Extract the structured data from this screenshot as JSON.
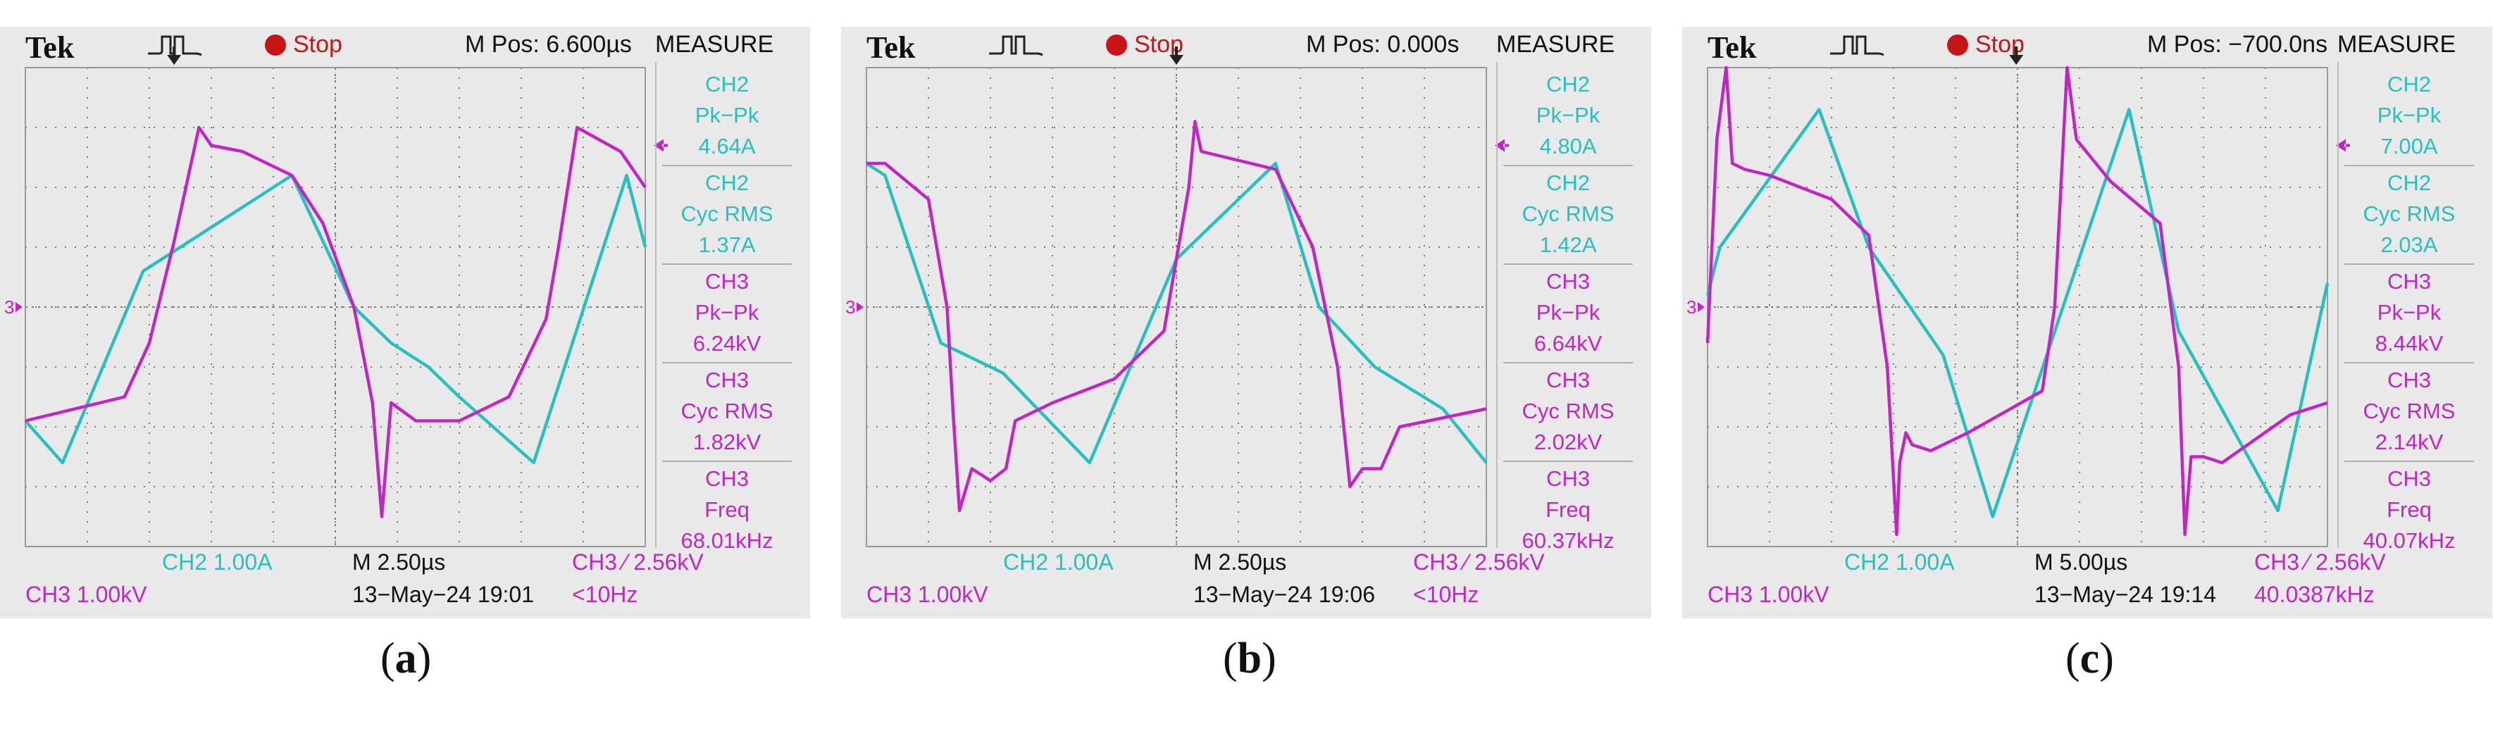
{
  "colors": {
    "ch2": "#27c0c0",
    "ch3": "#c126c2",
    "stop": "#c81414",
    "grid": "#7a7a7a"
  },
  "panels": [
    {
      "caption": "a",
      "header": {
        "brand": "Tek",
        "trigger_icon": "trigger-pulse-icon",
        "state": "Stop",
        "mpos": "M Pos: 6.600µs",
        "measure_title": "MEASURE"
      },
      "measurements": [
        {
          "ch": "CH2",
          "name": "Pk−Pk",
          "value": "4.64A"
        },
        {
          "ch": "CH2",
          "name": "Cyc RMS",
          "value": "1.37A"
        },
        {
          "ch": "CH3",
          "name": "Pk−Pk",
          "value": "6.24kV"
        },
        {
          "ch": "CH3",
          "name": "Cyc RMS",
          "value": "1.82kV"
        },
        {
          "ch": "CH3",
          "name": "Freq",
          "value": "68.01kHz"
        }
      ],
      "status": {
        "ch2_scale": "CH2  1.00A",
        "timebase": "M 2.50µs",
        "trigger": "CH3 ⁄ 2.56kV",
        "ch3_scale": "CH3  1.00kV",
        "datetime": "13−May−24 19:01",
        "trigger_freq": "<10Hz"
      }
    },
    {
      "caption": "b",
      "header": {
        "brand": "Tek",
        "trigger_icon": "trigger-pulse-icon",
        "state": "Stop",
        "mpos": "M Pos: 0.000s",
        "measure_title": "MEASURE"
      },
      "measurements": [
        {
          "ch": "CH2",
          "name": "Pk−Pk",
          "value": "4.80A"
        },
        {
          "ch": "CH2",
          "name": "Cyc RMS",
          "value": "1.42A"
        },
        {
          "ch": "CH3",
          "name": "Pk−Pk",
          "value": "6.64kV"
        },
        {
          "ch": "CH3",
          "name": "Cyc RMS",
          "value": "2.02kV"
        },
        {
          "ch": "CH3",
          "name": "Freq",
          "value": "60.37kHz"
        }
      ],
      "status": {
        "ch2_scale": "CH2  1.00A",
        "timebase": "M 2.50µs",
        "trigger": "CH3 ⁄ 2.56kV",
        "ch3_scale": "CH3  1.00kV",
        "datetime": "13−May−24 19:06",
        "trigger_freq": "<10Hz"
      }
    },
    {
      "caption": "c",
      "header": {
        "brand": "Tek",
        "trigger_icon": "trigger-pulse-icon",
        "state": "Stop",
        "mpos": "M Pos: −700.0ns",
        "measure_title": "MEASURE"
      },
      "measurements": [
        {
          "ch": "CH2",
          "name": "Pk−Pk",
          "value": "7.00A"
        },
        {
          "ch": "CH2",
          "name": "Cyc RMS",
          "value": "2.03A"
        },
        {
          "ch": "CH3",
          "name": "Pk−Pk",
          "value": "8.44kV"
        },
        {
          "ch": "CH3",
          "name": "Cyc RMS",
          "value": "2.14kV"
        },
        {
          "ch": "CH3",
          "name": "Freq",
          "value": "40.07kHz"
        }
      ],
      "status": {
        "ch2_scale": "CH2  1.00A",
        "timebase": "M 5.00µs",
        "trigger": "CH3 ⁄ 2.56kV",
        "ch3_scale": "CH3  1.00kV",
        "datetime": "13−May−24 19:14",
        "trigger_freq": "40.0387kHz"
      }
    }
  ],
  "chart_data": [
    {
      "type": "line",
      "title": "(a)",
      "x_unit": "div",
      "y_unit": "div",
      "xlim": [
        0,
        10
      ],
      "ylim": [
        -4,
        4
      ],
      "grid": true,
      "series": [
        {
          "name": "CH2",
          "unit": "A",
          "x": [
            0,
            0.6,
            1.9,
            4.3,
            5.3,
            5.9,
            6.5,
            7.0,
            8.2,
            9.7,
            10
          ],
          "y": [
            -1.9,
            -2.6,
            0.6,
            2.2,
            0.0,
            -0.6,
            -1.0,
            -1.5,
            -2.6,
            2.2,
            1.0
          ]
        },
        {
          "name": "CH3",
          "unit": "kV",
          "x": [
            0,
            1.6,
            2.0,
            2.4,
            2.8,
            3.0,
            3.5,
            4.3,
            4.8,
            5.3,
            5.6,
            5.75,
            5.9,
            6.3,
            7.0,
            7.8,
            8.4,
            8.6,
            8.9,
            9.6,
            10
          ],
          "y": [
            -1.9,
            -1.5,
            -0.6,
            1.1,
            3.0,
            2.7,
            2.6,
            2.2,
            1.4,
            0.0,
            -1.6,
            -3.5,
            -1.6,
            -1.9,
            -1.9,
            -1.5,
            -0.2,
            1.0,
            3.0,
            2.6,
            2.0
          ]
        }
      ]
    },
    {
      "type": "line",
      "title": "(b)",
      "x_unit": "div",
      "y_unit": "div",
      "xlim": [
        0,
        10
      ],
      "ylim": [
        -4,
        4
      ],
      "grid": true,
      "series": [
        {
          "name": "CH2",
          "unit": "A",
          "x": [
            0,
            0.3,
            1.2,
            2.2,
            3.6,
            5.0,
            6.6,
            7.3,
            8.2,
            9.3,
            10
          ],
          "y": [
            2.4,
            2.2,
            -0.6,
            -1.1,
            -2.6,
            0.8,
            2.4,
            0.0,
            -1.0,
            -1.7,
            -2.6
          ]
        },
        {
          "name": "CH3",
          "unit": "kV",
          "x": [
            0,
            0.3,
            1.0,
            1.3,
            1.4,
            1.5,
            1.7,
            2.0,
            2.25,
            2.4,
            3.0,
            4.0,
            4.8,
            5.2,
            5.3,
            5.4,
            6.6,
            7.2,
            7.6,
            7.8,
            8.0,
            8.3,
            8.6,
            10
          ],
          "y": [
            2.4,
            2.4,
            1.8,
            0.0,
            -1.8,
            -3.4,
            -2.7,
            -2.9,
            -2.7,
            -1.9,
            -1.6,
            -1.2,
            -0.4,
            2.0,
            3.1,
            2.6,
            2.3,
            1.0,
            -1.0,
            -3.0,
            -2.7,
            -2.7,
            -2.0,
            -1.7
          ]
        }
      ]
    },
    {
      "type": "line",
      "title": "(c)",
      "x_unit": "div",
      "y_unit": "div",
      "xlim": [
        0,
        10
      ],
      "ylim": [
        -4,
        4
      ],
      "grid": true,
      "series": [
        {
          "name": "CH2",
          "unit": "A",
          "x": [
            0,
            0.2,
            1.8,
            2.6,
            3.8,
            4.6,
            6.8,
            7.6,
            9.2,
            10
          ],
          "y": [
            0.2,
            1.0,
            3.3,
            1.0,
            -0.8,
            -3.5,
            3.3,
            -0.4,
            -3.4,
            0.4
          ]
        },
        {
          "name": "CH3",
          "unit": "kV",
          "x": [
            0,
            0.15,
            0.3,
            0.4,
            0.6,
            1.0,
            2.0,
            2.6,
            2.9,
            3.05,
            3.1,
            3.2,
            3.3,
            3.6,
            4.2,
            5.4,
            5.6,
            5.7,
            5.8,
            5.95,
            6.5,
            7.3,
            7.6,
            7.7,
            7.8,
            8.0,
            8.3,
            9.4,
            10
          ],
          "y": [
            -0.6,
            2.8,
            4.0,
            2.4,
            2.3,
            2.2,
            1.8,
            1.2,
            -1.0,
            -3.8,
            -2.6,
            -2.1,
            -2.3,
            -2.4,
            -2.1,
            -1.4,
            0.0,
            2.0,
            4.0,
            2.8,
            2.1,
            1.4,
            -1.0,
            -3.8,
            -2.5,
            -2.5,
            -2.6,
            -1.8,
            -1.6
          ]
        }
      ]
    }
  ]
}
